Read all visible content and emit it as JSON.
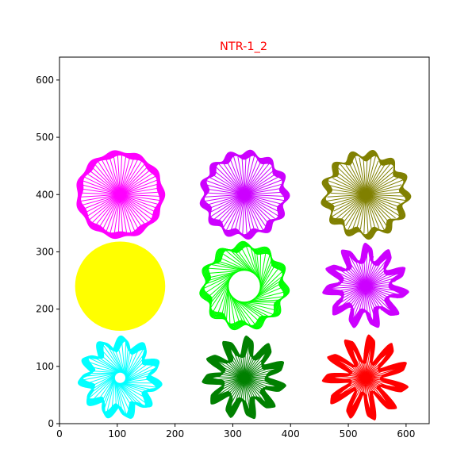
{
  "chart_data": {
    "type": "line",
    "title": "NTR-1_2",
    "title_color": "#ff0000",
    "xlabel": "",
    "ylabel": "",
    "xlim": [
      0,
      640
    ],
    "ylim": [
      0,
      640
    ],
    "x_ticks": [
      0,
      100,
      200,
      300,
      400,
      500,
      600
    ],
    "y_ticks": [
      0,
      100,
      200,
      300,
      400,
      500,
      600
    ],
    "grid": false,
    "legend": "none",
    "figures": [
      {
        "center": [
          105,
          400
        ],
        "color": "#ff00ff",
        "points": 11,
        "outer_radius": 77,
        "inner_radius": 0,
        "depth": 0.06,
        "loops": 8,
        "fill": false
      },
      {
        "center": [
          320,
          400
        ],
        "color": "#cc00ff",
        "points": 13,
        "outer_radius": 78,
        "inner_radius": 0,
        "depth": 0.12,
        "loops": 8,
        "fill": false
      },
      {
        "center": [
          530,
          400
        ],
        "color": "#808000",
        "points": 13,
        "outer_radius": 78,
        "inner_radius": 0,
        "depth": 0.16,
        "loops": 7,
        "fill": false
      },
      {
        "center": [
          105,
          240
        ],
        "color": "#ffff00",
        "points": 0,
        "outer_radius": 78,
        "inner_radius": 0,
        "depth": 0,
        "loops": 1,
        "fill": true
      },
      {
        "center": [
          320,
          240
        ],
        "color": "#00ff00",
        "points": 11,
        "outer_radius": 78,
        "inner_radius": 28,
        "depth": 0.14,
        "loops": 7,
        "fill": false
      },
      {
        "center": [
          530,
          240
        ],
        "color": "#cc00ff",
        "points": 11,
        "outer_radius": 75,
        "inner_radius": 0,
        "depth": 0.4,
        "loops": 8,
        "fill": false
      },
      {
        "center": [
          105,
          80
        ],
        "color": "#00ffff",
        "points": 11,
        "outer_radius": 73,
        "inner_radius": 10,
        "depth": 0.3,
        "loops": 8,
        "fill": false
      },
      {
        "center": [
          320,
          80
        ],
        "color": "#008000",
        "points": 11,
        "outer_radius": 73,
        "inner_radius": 0,
        "depth": 0.45,
        "loops": 9,
        "fill": false
      },
      {
        "center": [
          530,
          80
        ],
        "color": "#ff0000",
        "points": 11,
        "outer_radius": 75,
        "inner_radius": 0,
        "depth": 0.62,
        "loops": 8,
        "fill": false
      }
    ]
  }
}
